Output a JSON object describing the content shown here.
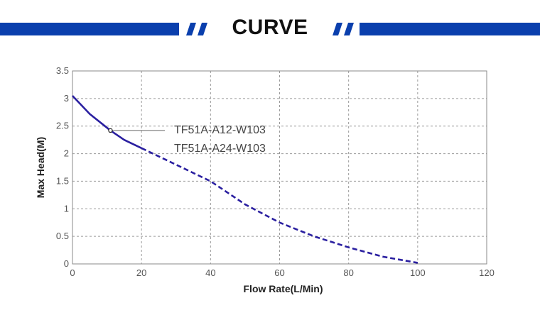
{
  "header": {
    "title": "CURVE",
    "accent_color": "#0a3fad"
  },
  "chart_data": {
    "type": "line",
    "title": "",
    "xlabel": "Flow Rate(L/Min)",
    "ylabel": "Max Head(M)",
    "xlim": [
      0,
      120
    ],
    "ylim": [
      0,
      3.5
    ],
    "x_ticks": [
      "0",
      "20",
      "40",
      "60",
      "80",
      "100",
      "120"
    ],
    "y_ticks": [
      "0",
      "0.5",
      "1",
      "1.5",
      "2",
      "2.5",
      "3",
      "3.5"
    ],
    "grid": true,
    "grid_style": "dashed",
    "line_color": "#2a1fa0",
    "series": [
      {
        "name": "TF51A-A12-W103",
        "style": "solid",
        "x": [
          0,
          5,
          11,
          15,
          20
        ],
        "y": [
          3.05,
          2.72,
          2.42,
          2.25,
          2.1
        ]
      },
      {
        "name": "TF51A-A24-W103",
        "style": "dashed",
        "x": [
          20,
          30,
          40,
          50,
          60,
          70,
          80,
          90,
          100
        ],
        "y": [
          2.1,
          1.8,
          1.5,
          1.08,
          0.75,
          0.5,
          0.3,
          0.13,
          0.02
        ]
      }
    ],
    "annotation": {
      "label_series": "TF51A-A12-W103",
      "x": 11,
      "y": 2.42
    }
  }
}
